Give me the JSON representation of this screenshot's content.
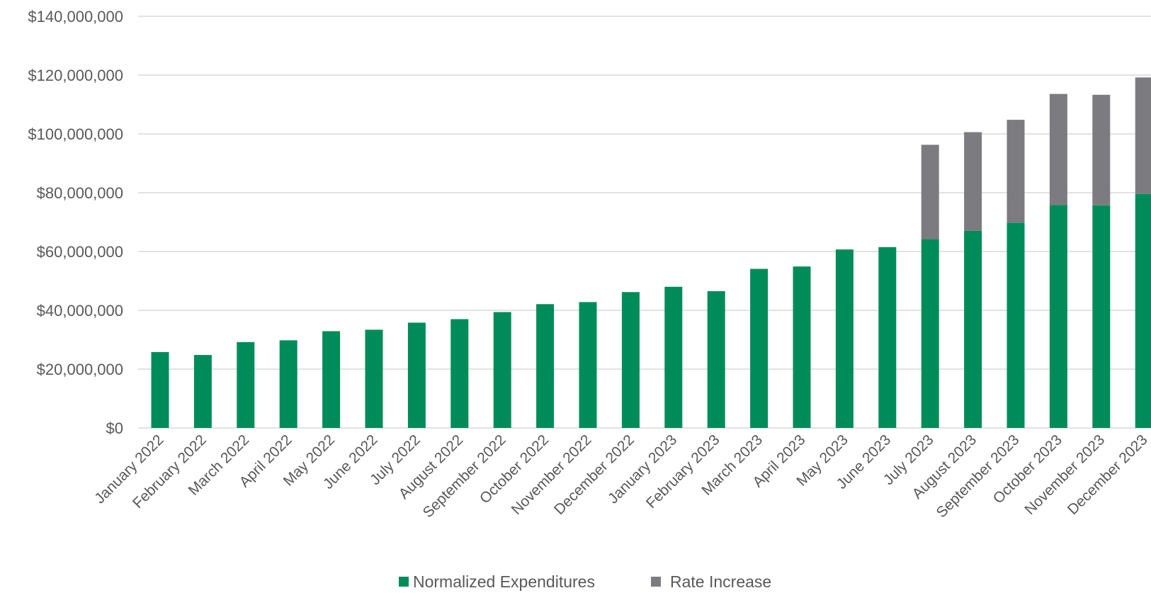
{
  "colors": {
    "normalized": "#008c5a",
    "rate": "#7c7c80",
    "grid": "#d9d9d9",
    "text": "#595959"
  },
  "chart_data": {
    "type": "bar",
    "stacked": true,
    "title": "",
    "xlabel": "",
    "ylabel": "",
    "ylim": [
      0,
      140000000
    ],
    "yticks": [
      0,
      20000000,
      40000000,
      60000000,
      80000000,
      100000000,
      120000000,
      140000000
    ],
    "ytick_labels": [
      "$0",
      "$20,000,000",
      "$40,000,000",
      "$60,000,000",
      "$80,000,000",
      "$100,000,000",
      "$120,000,000",
      "$140,000,000"
    ],
    "grid": true,
    "legend_position": "bottom",
    "categories": [
      "January 2022",
      "February 2022",
      "March 2022",
      "April 2022",
      "May 2022",
      "June 2022",
      "July 2022",
      "August 2022",
      "September 2022",
      "October 2022",
      "November 2022",
      "December 2022",
      "January 2023",
      "February 2023",
      "March 2023",
      "April 2023",
      "May 2023",
      "June 2023",
      "July 2023",
      "August 2023",
      "September 2023",
      "October 2023",
      "November 2023",
      "December 2023"
    ],
    "series": [
      {
        "name": "Normalized Expenditures",
        "color": "#008c5a",
        "values": [
          25800000,
          24800000,
          29200000,
          29800000,
          32900000,
          33400000,
          35800000,
          37000000,
          39400000,
          42100000,
          42800000,
          46200000,
          48000000,
          46500000,
          54100000,
          54900000,
          60700000,
          61500000,
          64200000,
          67000000,
          69800000,
          75800000,
          75700000,
          79600000
        ]
      },
      {
        "name": "Rate Increase",
        "color": "#7c7c80",
        "values": [
          0,
          0,
          0,
          0,
          0,
          0,
          0,
          0,
          0,
          0,
          0,
          0,
          0,
          0,
          0,
          0,
          0,
          0,
          32100000,
          33600000,
          35000000,
          37800000,
          37600000,
          39600000
        ]
      }
    ]
  }
}
